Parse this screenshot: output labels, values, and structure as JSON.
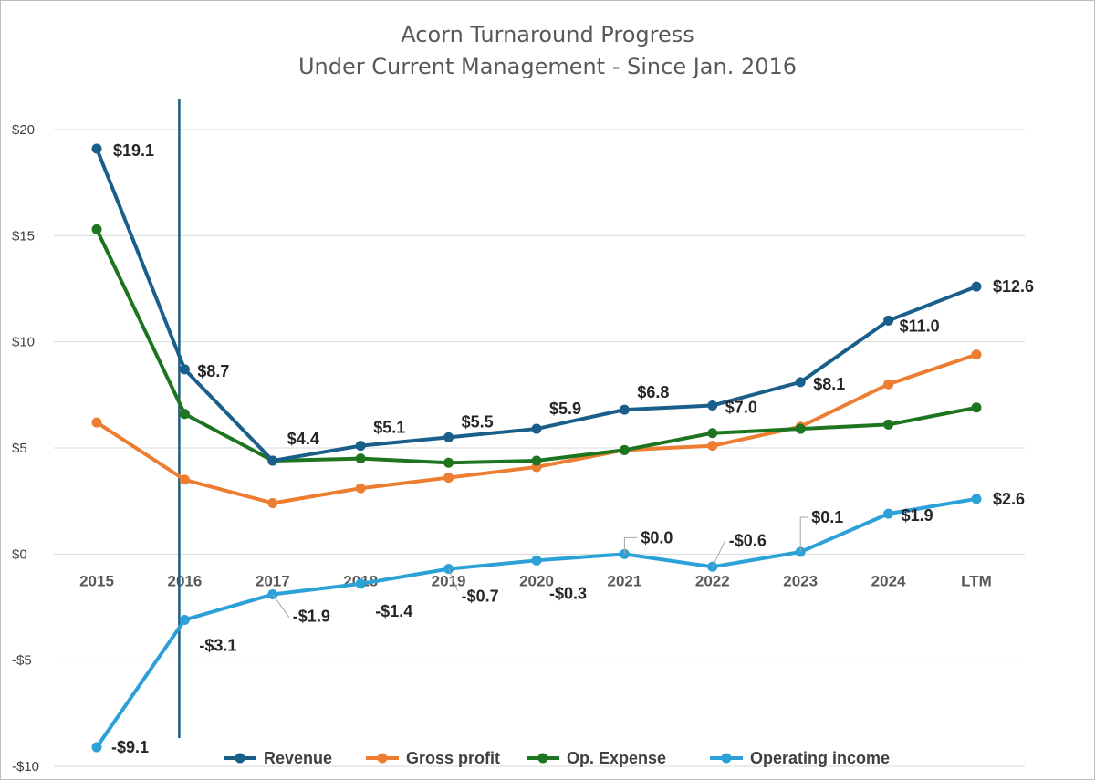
{
  "chart_data": {
    "type": "line",
    "title": "Acorn Turnaround Progress",
    "subtitle": "Under Current Management - Since Jan. 2016",
    "xlabel": "",
    "ylabel": "",
    "categories": [
      "2015",
      "2016",
      "2017",
      "2018",
      "2019",
      "2020",
      "2021",
      "2022",
      "2023",
      "2024",
      "LTM"
    ],
    "ylim": [
      -10,
      20
    ],
    "yticks": [
      20,
      15,
      10,
      5,
      0,
      -5,
      -10
    ],
    "ytick_labels": [
      "$20",
      "$15",
      "$10",
      "$5",
      "$0",
      "-$5",
      "-$10"
    ],
    "grid": true,
    "legend_position": "bottom",
    "reference_line": {
      "category": "2016",
      "color": "#1f5c80"
    },
    "series": [
      {
        "name": "Revenue",
        "color": "#1a5f8a",
        "values": [
          19.1,
          8.7,
          4.4,
          5.1,
          5.5,
          5.9,
          6.8,
          7.0,
          8.1,
          11.0,
          12.6
        ],
        "labels": [
          "$19.1",
          "$8.7",
          "$4.4",
          "$5.1",
          "$5.5",
          "$5.9",
          "$6.8",
          "$7.0",
          "$8.1",
          "$11.0",
          "$12.6"
        ]
      },
      {
        "name": "Gross profit",
        "color": "#ed7d31",
        "values": [
          6.2,
          3.5,
          2.4,
          3.1,
          3.6,
          4.1,
          4.9,
          5.1,
          6.0,
          8.0,
          9.4
        ],
        "labels": []
      },
      {
        "name": "Op. Expense",
        "color": "#1e7520",
        "values": [
          15.3,
          6.6,
          4.4,
          4.5,
          4.3,
          4.4,
          4.9,
          5.7,
          5.9,
          6.1,
          6.9
        ],
        "labels": []
      },
      {
        "name": "Operating income",
        "color": "#2ba1d8",
        "values": [
          -9.1,
          -3.1,
          -1.9,
          -1.4,
          -0.7,
          -0.3,
          0.0,
          -0.6,
          0.1,
          1.9,
          2.6
        ],
        "labels": [
          "-$9.1",
          "-$3.1",
          "-$1.9",
          "-$1.4",
          "-$0.7",
          "-$0.3",
          "$0.0",
          "-$0.6",
          "$0.1",
          "$1.9",
          "$2.6"
        ]
      }
    ]
  }
}
